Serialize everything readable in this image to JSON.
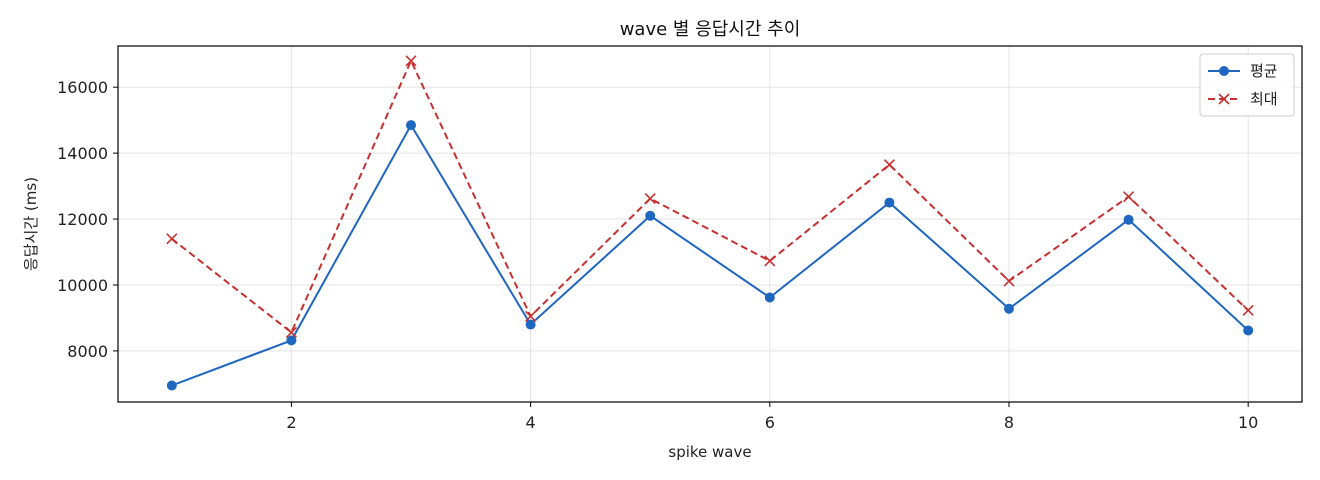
{
  "chart_data": {
    "type": "line",
    "title": "wave 별 응답시간 추이",
    "xlabel": "spike wave",
    "ylabel": "응답시간 (ms)",
    "x": [
      1,
      2,
      3,
      4,
      5,
      6,
      7,
      8,
      9,
      10
    ],
    "xlim": [
      0.55,
      10.45
    ],
    "ylim": [
      6450,
      17250
    ],
    "xticks": [
      2,
      4,
      6,
      8,
      10
    ],
    "yticks": [
      8000,
      10000,
      12000,
      14000,
      16000
    ],
    "grid": true,
    "legend_position": "top-right",
    "series": [
      {
        "name": "평균",
        "color": "#1f66c1",
        "line_style": "solid",
        "marker": "circle",
        "values": [
          6950,
          8320,
          14850,
          8800,
          12100,
          9620,
          12500,
          9280,
          11980,
          8620
        ]
      },
      {
        "name": "최대",
        "color": "#c8302f",
        "line_style": "dashed",
        "marker": "x",
        "values": [
          11400,
          8560,
          16800,
          9050,
          12620,
          10730,
          13650,
          10120,
          12680,
          9230
        ]
      }
    ]
  }
}
